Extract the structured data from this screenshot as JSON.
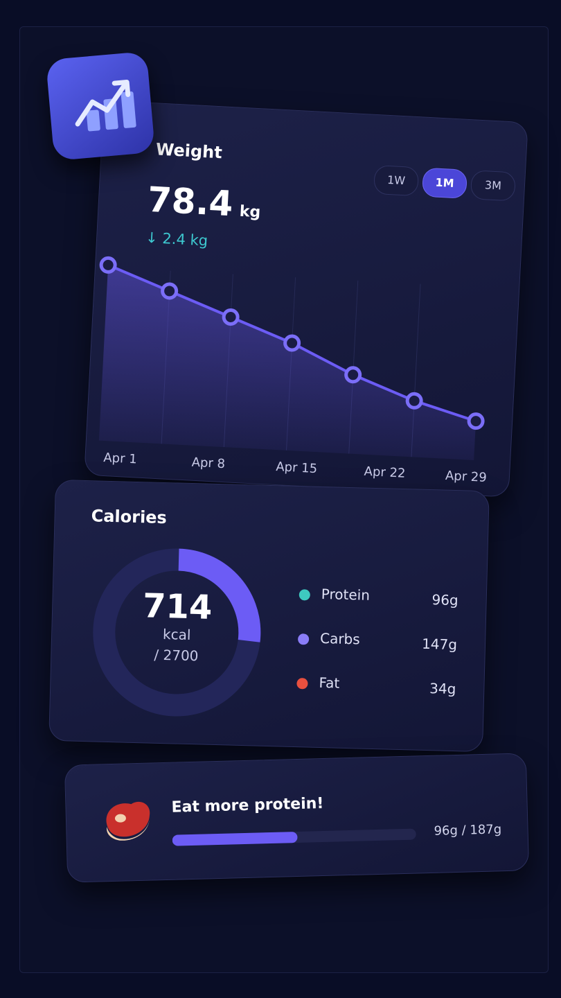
{
  "weight": {
    "title": "Weight",
    "value": "78.4",
    "unit": "kg",
    "change": "2.4 kg",
    "tabs": [
      "1W",
      "1M",
      "3M"
    ],
    "active_tab": 1
  },
  "chart_data": {
    "type": "line",
    "values": [
      80.8,
      80.4,
      80.0,
      79.6,
      79.1,
      78.7,
      78.4
    ],
    "ylim": [
      78.2,
      81.0
    ],
    "xticks": [
      "Apr 1",
      "Apr 8",
      "Apr 15",
      "Apr 22",
      "Apr 29"
    ],
    "color": "#6c5cf5"
  },
  "calories": {
    "title": "Calories",
    "consumed": 714,
    "unit": "kcal",
    "goal": {
      "value": 2700,
      "label": "/ 2700"
    },
    "color": "#6c5cf5"
  },
  "macros": [
    {
      "name": "Protein",
      "amount": "96g",
      "color": "#3ec9c0"
    },
    {
      "name": "Carbs",
      "amount": "147g",
      "color": "#8a7df7"
    },
    {
      "name": "Fat",
      "amount": "34g",
      "color": "#e8503f"
    }
  ],
  "protein_goal": {
    "title": "Eat more protein!",
    "current": 96,
    "goal": 187,
    "label": "96g / 187g",
    "color": "#6c5cf5"
  }
}
